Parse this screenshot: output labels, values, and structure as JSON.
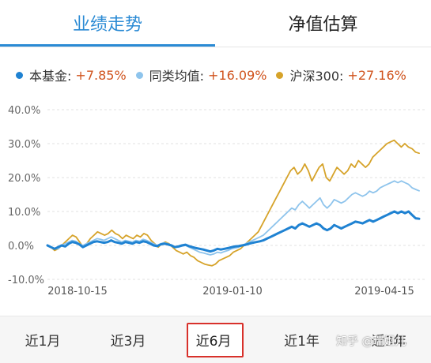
{
  "tabs": {
    "performance": "业绩走势",
    "estimate": "净值估算"
  },
  "legend": [
    {
      "name": "本基金:",
      "value": "+7.85%",
      "color": "#1f82d2"
    },
    {
      "name": "同类均值:",
      "value": "+16.09%",
      "color": "#8ec4ec"
    },
    {
      "name": "沪深300:",
      "value": "+27.16%",
      "color": "#d6a32a"
    }
  ],
  "periods": [
    "近1月",
    "近3月",
    "近6月",
    "近1年",
    "近3年"
  ],
  "active_period": "近6月",
  "watermark": "知乎 @瑞姐儿",
  "chart_data": {
    "type": "line",
    "ylim": [
      -10,
      40
    ],
    "yticks": [
      "40.0%",
      "30.0%",
      "20.0%",
      "10.0%",
      "0.0%",
      "-10.0%"
    ],
    "xticks": [
      "2018-10-15",
      "2019-01-10",
      "2019-04-15"
    ],
    "series": [
      {
        "name": "本基金",
        "color": "#1f82d2",
        "values": [
          0,
          -0.5,
          -1,
          -0.5,
          0,
          -0.3,
          0.5,
          1,
          0.8,
          0.3,
          -0.5,
          0,
          0.5,
          1,
          1.2,
          1,
          0.8,
          1,
          1.5,
          1,
          0.8,
          0.5,
          1,
          0.8,
          0.5,
          1,
          0.8,
          1.2,
          1,
          0.5,
          0,
          -0.2,
          0.3,
          0.5,
          0.3,
          0,
          -0.5,
          -0.3,
          0,
          0.2,
          -0.2,
          -0.5,
          -0.8,
          -1,
          -1.2,
          -1.5,
          -1.8,
          -1.5,
          -1,
          -1.2,
          -1,
          -0.8,
          -0.5,
          -0.3,
          -0.2,
          0,
          0.2,
          0.5,
          0.8,
          1,
          1.2,
          1.5,
          2,
          2.5,
          3,
          3.5,
          4,
          4.5,
          5,
          5.5,
          5,
          6,
          6.5,
          6,
          5.5,
          6,
          6.5,
          6,
          5,
          4.5,
          5,
          6,
          5.5,
          5,
          5.5,
          6,
          6.5,
          7,
          6.8,
          6.5,
          7,
          7.5,
          7,
          7.5,
          8,
          8.5,
          9,
          9.5,
          10,
          9.5,
          10,
          9.5,
          10,
          9,
          8,
          7.85
        ]
      },
      {
        "name": "同类均值",
        "color": "#8ec4ec",
        "values": [
          0,
          -0.5,
          -1,
          -1,
          0,
          0.5,
          1,
          1.5,
          1.2,
          0.5,
          0,
          0.5,
          1,
          1.5,
          2,
          1.8,
          1.5,
          2,
          2.5,
          2,
          1.5,
          1,
          1.5,
          1.2,
          1,
          1.5,
          1.2,
          1.8,
          1.5,
          1,
          0.5,
          0,
          0.5,
          0.8,
          0.5,
          0,
          -0.5,
          -0.5,
          -0.2,
          0,
          -0.5,
          -1,
          -1.5,
          -2,
          -2.2,
          -2.5,
          -2.8,
          -2.5,
          -2,
          -2.2,
          -1.8,
          -1.5,
          -1,
          -0.8,
          -0.5,
          0,
          0.5,
          1,
          1.5,
          2,
          2.5,
          3,
          4,
          5,
          6,
          7,
          8,
          9,
          10,
          11,
          10.5,
          12,
          13,
          12,
          11,
          12,
          13,
          14,
          12,
          11,
          12,
          13.5,
          13,
          12.5,
          13,
          14,
          15,
          15.5,
          15,
          14.5,
          15,
          16,
          15.5,
          16,
          17,
          17.5,
          18,
          18.5,
          19,
          18.5,
          19,
          18.5,
          18,
          17,
          16.5,
          16.09
        ]
      },
      {
        "name": "沪深300",
        "color": "#d6a32a",
        "values": [
          0,
          -0.5,
          -1.5,
          -1,
          0,
          1,
          2,
          3,
          2.5,
          1,
          -0.5,
          0.5,
          2,
          3,
          4,
          3.5,
          3,
          3.5,
          4.5,
          3.5,
          3,
          2,
          3,
          2.5,
          2,
          3,
          2.5,
          3.5,
          3,
          1.5,
          0.5,
          -0.5,
          0.5,
          1,
          0.5,
          -0.5,
          -1.5,
          -2,
          -2.5,
          -2,
          -3,
          -3.5,
          -4.5,
          -5,
          -5.5,
          -5.8,
          -6,
          -5.5,
          -4.5,
          -4,
          -3.5,
          -3,
          -2,
          -1.5,
          -1,
          0,
          1,
          2,
          3,
          4,
          6,
          8,
          10,
          12,
          14,
          16,
          18,
          20,
          22,
          23,
          21,
          22,
          24,
          22,
          19,
          21,
          23,
          24,
          20,
          19,
          21,
          23,
          22,
          21,
          22,
          24,
          23,
          25,
          24,
          23,
          24,
          26,
          27,
          28,
          29,
          30,
          30.5,
          31,
          30,
          29,
          30,
          29,
          28.5,
          27.5,
          27.16
        ]
      }
    ]
  }
}
